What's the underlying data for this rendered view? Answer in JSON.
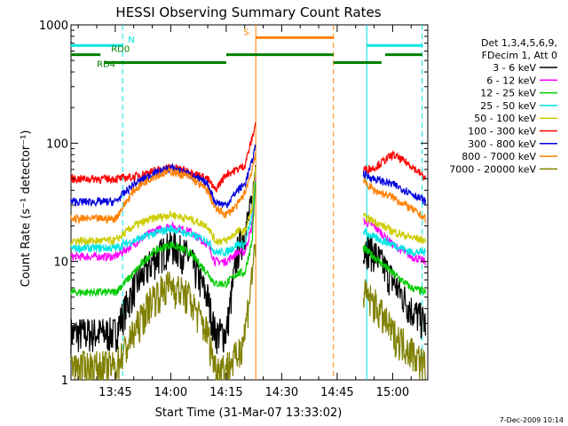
{
  "chart_data": {
    "type": "line",
    "title": "HESSI Observing Summary Count Rates",
    "xlabel": "Start Time (31-Mar-07 13:33:02)",
    "ylabel": "Count Rate (s⁻¹ detector⁻¹)",
    "y_scale": "log",
    "ylim": [
      1,
      1000
    ],
    "xlim": [
      "13:33:02",
      "15:09:30"
    ],
    "x_ticks": [
      "13:45",
      "14:00",
      "14:15",
      "14:30",
      "14:45",
      "15:00"
    ],
    "y_ticks": [
      "1",
      "10",
      "100",
      "1000"
    ],
    "legend_header": [
      "Det 1,3,4,5,6,9,",
      "FDecim 1, Att 0"
    ],
    "legend_position": "right",
    "timestamp": "7-Dec-2009 10:14",
    "series": [
      {
        "name": "3 - 6 keV",
        "color": "#000000",
        "x": [
          "13:33",
          "13:45",
          "13:50",
          "13:55",
          "14:00",
          "14:05",
          "14:10",
          "14:12",
          "14:15",
          "14:18",
          "14:20",
          "14:22",
          "14:23",
          "14:52",
          "14:55",
          "15:00",
          "15:05",
          "15:09"
        ],
        "values": [
          2.5,
          2.5,
          6,
          10,
          14,
          11,
          5,
          2.5,
          2.5,
          12,
          18,
          30,
          70,
          14,
          12,
          7,
          4,
          3
        ]
      },
      {
        "name": "6 - 12 keV",
        "color": "#ff00ff",
        "x": [
          "13:33",
          "13:45",
          "13:50",
          "13:55",
          "14:00",
          "14:05",
          "14:10",
          "14:12",
          "14:15",
          "14:18",
          "14:20",
          "14:22",
          "14:23",
          "14:52",
          "14:55",
          "15:00",
          "15:05",
          "15:09"
        ],
        "values": [
          11,
          11,
          14,
          18,
          20,
          18,
          14,
          10,
          10,
          12,
          12,
          20,
          60,
          22,
          20,
          14,
          11,
          10
        ]
      },
      {
        "name": "12 - 25 keV",
        "color": "#00cc00",
        "x": [
          "13:33",
          "13:45",
          "13:50",
          "13:55",
          "14:00",
          "14:05",
          "14:10",
          "14:12",
          "14:15",
          "14:18",
          "14:20",
          "14:22",
          "14:23",
          "14:52",
          "14:55",
          "15:00",
          "15:05",
          "15:09"
        ],
        "values": [
          5.5,
          5.5,
          8,
          12,
          14,
          12,
          8,
          6.5,
          6.5,
          8,
          8,
          15,
          50,
          13,
          11,
          8,
          6,
          5.5
        ]
      },
      {
        "name": "25 - 50 keV",
        "color": "#00e5e5",
        "x": [
          "13:33",
          "13:45",
          "13:50",
          "13:55",
          "14:00",
          "14:05",
          "14:10",
          "14:12",
          "14:15",
          "14:18",
          "14:20",
          "14:22",
          "14:23",
          "14:52",
          "14:55",
          "15:00",
          "15:05",
          "15:09"
        ],
        "values": [
          13,
          13,
          15,
          17,
          19,
          17,
          15,
          12,
          12,
          14,
          14,
          24,
          65,
          18,
          16,
          14,
          12,
          12
        ]
      },
      {
        "name": "50 - 100 keV",
        "color": "#cccc00",
        "x": [
          "13:33",
          "13:45",
          "13:50",
          "13:55",
          "14:00",
          "14:05",
          "14:10",
          "14:12",
          "14:15",
          "14:18",
          "14:20",
          "14:22",
          "14:23",
          "14:52",
          "14:55",
          "15:00",
          "15:05",
          "15:09"
        ],
        "values": [
          15,
          15,
          20,
          23,
          25,
          23,
          20,
          15,
          15,
          18,
          18,
          28,
          70,
          24,
          22,
          18,
          16,
          15
        ]
      },
      {
        "name": "100 - 300 keV",
        "color": "#ff0000",
        "x": [
          "13:33",
          "13:45",
          "13:50",
          "13:55",
          "14:00",
          "14:05",
          "14:10",
          "14:12",
          "14:15",
          "14:18",
          "14:20",
          "14:22",
          "14:23",
          "14:52",
          "14:55",
          "15:00",
          "15:05",
          "15:09"
        ],
        "values": [
          50,
          50,
          52,
          58,
          63,
          58,
          50,
          40,
          55,
          60,
          65,
          110,
          150,
          60,
          62,
          80,
          65,
          50
        ]
      },
      {
        "name": "300 - 800 keV",
        "color": "#0000dd",
        "x": [
          "13:33",
          "13:45",
          "13:50",
          "13:55",
          "14:00",
          "14:05",
          "14:10",
          "14:12",
          "14:15",
          "14:18",
          "14:20",
          "14:22",
          "14:23",
          "14:52",
          "14:55",
          "15:00",
          "15:05",
          "15:09"
        ],
        "values": [
          32,
          32,
          45,
          55,
          62,
          55,
          45,
          32,
          30,
          40,
          45,
          70,
          100,
          55,
          50,
          45,
          38,
          32
        ]
      },
      {
        "name": "800 - 7000 keV",
        "color": "#ff8000",
        "x": [
          "13:33",
          "13:45",
          "13:50",
          "13:55",
          "14:00",
          "14:05",
          "14:10",
          "14:12",
          "14:15",
          "14:18",
          "14:20",
          "14:22",
          "14:23",
          "14:52",
          "14:55",
          "15:00",
          "15:05",
          "15:09"
        ],
        "values": [
          23,
          23,
          40,
          52,
          58,
          52,
          40,
          28,
          25,
          30,
          38,
          60,
          85,
          48,
          40,
          35,
          28,
          23
        ]
      },
      {
        "name": "7000 - 20000 keV",
        "color": "#808000",
        "x": [
          "13:33",
          "13:45",
          "13:50",
          "13:55",
          "14:00",
          "14:05",
          "14:10",
          "14:12",
          "14:15",
          "14:18",
          "14:20",
          "14:22",
          "14:23",
          "14:52",
          "14:55",
          "15:00",
          "15:05",
          "15:09"
        ],
        "values": [
          1.3,
          1.3,
          2.5,
          5,
          6.5,
          5,
          2.5,
          1.3,
          1.3,
          1.6,
          2.5,
          8,
          15,
          5.5,
          4.5,
          2.5,
          1.8,
          1.3
        ]
      }
    ],
    "flags": [
      {
        "label": "N",
        "color": "#00e5e5",
        "y": 670,
        "segments": [
          [
            "13:33",
            "13:47"
          ],
          [
            "14:53",
            "15:08"
          ]
        ]
      },
      {
        "label": "RD0",
        "color": "#008000",
        "y": 560,
        "segments": [
          [
            "13:33",
            "13:41"
          ],
          [
            "14:15",
            "14:44"
          ],
          [
            "14:58",
            "15:08"
          ]
        ]
      },
      {
        "label": "RD4",
        "color": "#008000",
        "y": 480,
        "segments": [
          [
            "13:42",
            "14:15"
          ],
          [
            "14:44",
            "14:57"
          ]
        ]
      },
      {
        "label": "S",
        "color": "#ff8000",
        "y": 780,
        "segments": [
          [
            "14:23",
            "14:44"
          ]
        ]
      }
    ],
    "vlines": [
      {
        "x": "13:47",
        "color": "#00e5e5",
        "dashed": true
      },
      {
        "x": "14:53",
        "color": "#00e5e5",
        "dashed": false
      },
      {
        "x": "15:08",
        "color": "#00e5e5",
        "dashed": true
      },
      {
        "x": "14:23",
        "color": "#ff8000",
        "dashed": false
      },
      {
        "x": "14:44",
        "color": "#ff8000",
        "dashed": true
      }
    ],
    "data_gaps": [
      [
        "14:23",
        "14:52"
      ]
    ]
  }
}
